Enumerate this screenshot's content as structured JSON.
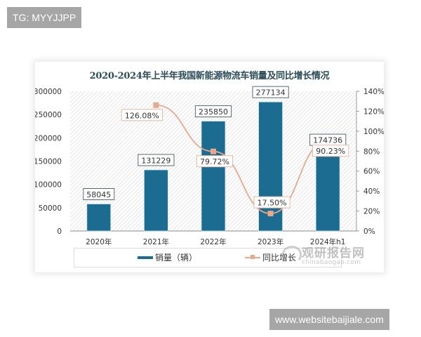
{
  "watermarks": {
    "top_left": "TG: MYYJJPP",
    "bottom_right": "www.websitebaijiale.com"
  },
  "chart": {
    "title": "2020-2024年上半年我国新能源物流车销量及同比增长情况",
    "legend": {
      "bar_label": "销量（辆）",
      "line_label": "同比增长"
    },
    "source_logo": {
      "cn": "观研报告网",
      "en": "chinabaogao.com"
    }
  },
  "chart_data": {
    "type": "bar",
    "title": "2020-2024年上半年我国新能源物流车销量及同比增长情况",
    "categories": [
      "2020年",
      "2021年",
      "2022年",
      "2023年",
      "2024年h1"
    ],
    "series": [
      {
        "name": "销量（辆）",
        "type": "bar",
        "axis": "left",
        "color": "#1c6b91",
        "values": [
          58045,
          131229,
          235850,
          277134,
          174736
        ],
        "labels": [
          "58045",
          "131229",
          "235850",
          "277134",
          "174736"
        ]
      },
      {
        "name": "同比增长",
        "type": "line",
        "axis": "right",
        "color": "#e6a98f",
        "values": [
          null,
          126.08,
          79.72,
          17.5,
          90.23
        ],
        "labels": [
          null,
          "126.08%",
          "79.72%",
          "17.50%",
          "90.23%"
        ]
      }
    ],
    "y_left": {
      "ticks": [
        "0",
        "50000",
        "100000",
        "150000",
        "200000",
        "250000",
        "300000"
      ],
      "ylim": [
        0,
        300000
      ]
    },
    "y_right": {
      "ticks": [
        "0%",
        "20%",
        "40%",
        "60%",
        "80%",
        "100%",
        "120%",
        "140%"
      ],
      "ylim": [
        0,
        140
      ]
    },
    "xlabel": "",
    "ylabel": "",
    "legend_position": "bottom",
    "grid": false
  }
}
